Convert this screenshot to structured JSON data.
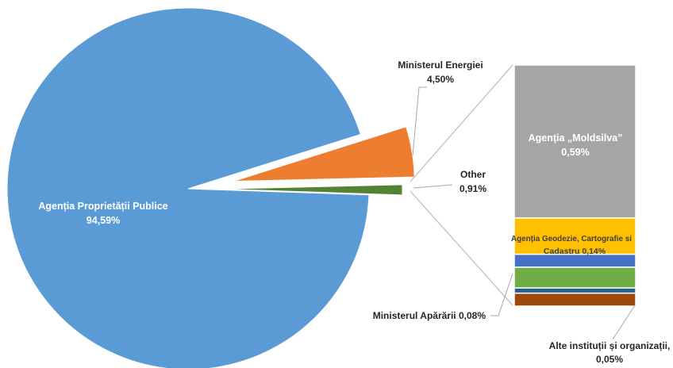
{
  "chart_data": {
    "type": "pie",
    "pie": {
      "slices": [
        {
          "name": "Agenția Proprietății Publice",
          "value": 94.59,
          "label": "94,59%",
          "color": "#5b9bd5"
        },
        {
          "name": "Ministerul Energiei",
          "value": 4.5,
          "label": "4,50%",
          "color": "#ed7d31"
        },
        {
          "name": "Other",
          "value": 0.91,
          "label": "0,91%",
          "color": "#548235"
        }
      ]
    },
    "breakdown": {
      "of": "Other",
      "items": [
        {
          "name": "Agenția „Moldsilva”",
          "value": 0.59,
          "label": "0,59%",
          "color": "#a5a5a5"
        },
        {
          "name": "Agenția Geodezie, Cartografie si Cadastru",
          "value": 0.14,
          "label": "0,14%",
          "color": "#ffc000"
        },
        {
          "name": "",
          "value": 0.05,
          "label": "",
          "color": "#4472c4"
        },
        {
          "name": "Ministerul Apărării",
          "value": 0.08,
          "label": "0,08%",
          "color": "#70ad47"
        },
        {
          "name": "",
          "value": 0.02,
          "label": "",
          "color": "#255e91"
        },
        {
          "name": "Alte instituții și organizații,",
          "value": 0.05,
          "label": "0,05%",
          "color": "#9e480e"
        }
      ]
    },
    "texts": {
      "app_label_name": "Agenția Proprietății Publice",
      "app_label_value": "94,59%",
      "me_label_name": "Ministerul Energiei",
      "me_label_value": "4,50%",
      "other_label_name": "Other",
      "other_label_value": "0,91%",
      "moldsilva_name": "Agenția „Moldsilva”",
      "moldsilva_value": "0,59%",
      "geodezie_line1": "Agenția Geodezie, Cartografie si",
      "geodezie_line2": "Cadastru 0,14%",
      "aparare_label": "Ministerul Apărării 0,08%",
      "alte_line1": "Alte instituții și organizații,",
      "alte_line2": "0,05%"
    }
  }
}
